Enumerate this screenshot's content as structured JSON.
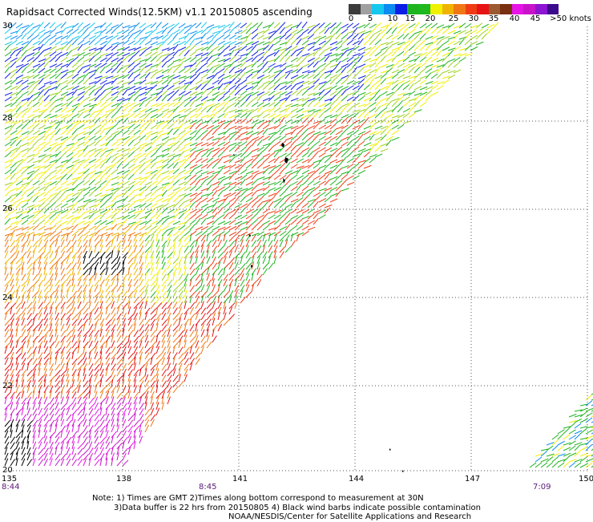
{
  "title": "Rapidsact Corrected Winds(12.5KM) v1.1 20150805 ascending",
  "legend": {
    "colors": [
      "#3c3c3c",
      "#a0a0a0",
      "#16c8ee",
      "#0a8cf0",
      "#0a1ee6",
      "#1eb41e",
      "#1eb91e",
      "#f0f000",
      "#f0b400",
      "#f07814",
      "#f03c14",
      "#e61414",
      "#9b5a32",
      "#7a3010",
      "#e614e6",
      "#c814c8",
      "#8c14d2",
      "#3c0a8c"
    ],
    "labels": [
      "0",
      "5",
      "10",
      "15",
      "20",
      "25",
      "30",
      "35",
      "40",
      "45",
      ">50 knots"
    ]
  },
  "axes": {
    "lon_labels": [
      "135",
      "138",
      "141",
      "144",
      "147",
      "150"
    ],
    "lat_labels": [
      "20",
      "22",
      "24",
      "26",
      "28",
      "30"
    ]
  },
  "times": [
    "8:44",
    "8:45",
    "7:09"
  ],
  "notes": [
    "Note: 1) Times are GMT 2)Times along bottom correspond to measurement at 30N",
    "3)Data buffer is 22 hrs from 20150805 4) Black wind barbs indicate possible contamination",
    "NOAA/NESDIS/Center for Satellite Applications and Research"
  ]
}
